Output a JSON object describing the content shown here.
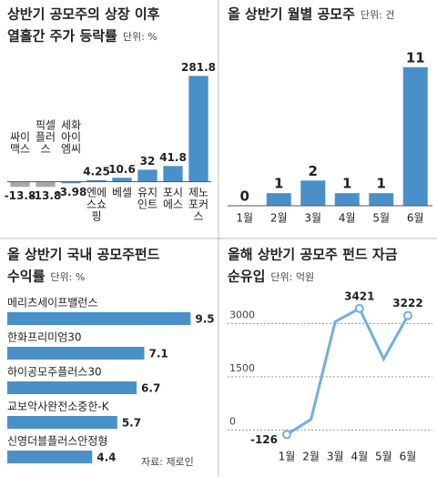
{
  "chart_data": [
    {
      "type": "bar",
      "title": "상반기 공모주의 상장 이후",
      "subtitle": "열흘간 주가 등락률",
      "unit": "단위: %",
      "categories": [
        "싸이맥스",
        "픽셀플러스",
        "세화아이엠씨",
        "엔에스쇼핑",
        "베셀",
        "유지인트",
        "포시에스",
        "제노포커스"
      ],
      "values": [
        -13.8,
        -13.8,
        -3.98,
        4.25,
        10.6,
        32,
        41.8,
        281.8
      ],
      "colors": [
        "#a7a9ac",
        "#a7a9ac",
        "#4a90c8",
        "#4a90c8",
        "#4a90c8",
        "#4a90c8",
        "#4a90c8",
        "#4a90c8"
      ],
      "ylim": [
        -30,
        290
      ]
    },
    {
      "type": "bar",
      "title": "올 상반기 월별 공모주",
      "unit": "단위: 건",
      "categories": [
        "1월",
        "2월",
        "3월",
        "4월",
        "5월",
        "6월"
      ],
      "values": [
        0,
        1,
        2,
        1,
        1,
        11
      ],
      "color": "#4a90c8",
      "ylim": [
        0,
        12
      ]
    },
    {
      "type": "hbar",
      "title": "올 상반기 국내 공모주펀드",
      "subtitle": "수익률",
      "unit": "단위: %",
      "categories": [
        "메리츠세이프밸런스",
        "한화프리미엄30",
        "하이공모주플러스30",
        "교보악사완전소중한-K",
        "신영더블플러스안정형"
      ],
      "values": [
        9.5,
        7.1,
        6.7,
        5.7,
        4.4
      ],
      "color": "#4a90c8",
      "xlim": [
        0,
        10
      ]
    },
    {
      "type": "line",
      "title": "올해 상반기 공모주 펀드 자금",
      "subtitle": "순유입",
      "unit": "단위: 억원",
      "categories": [
        "1월",
        "2월",
        "3월",
        "4월",
        "5월",
        "6월"
      ],
      "values": [
        -126,
        300,
        3050,
        3421,
        2000,
        3222
      ],
      "value_labels": [
        "-126",
        null,
        null,
        "3421",
        null,
        "3222"
      ],
      "color": "#6fb0e0",
      "ylim": [
        -400,
        3700
      ],
      "yticks": [
        0,
        1500,
        3000
      ],
      "grid": true
    }
  ],
  "source": "자료: 제로인"
}
